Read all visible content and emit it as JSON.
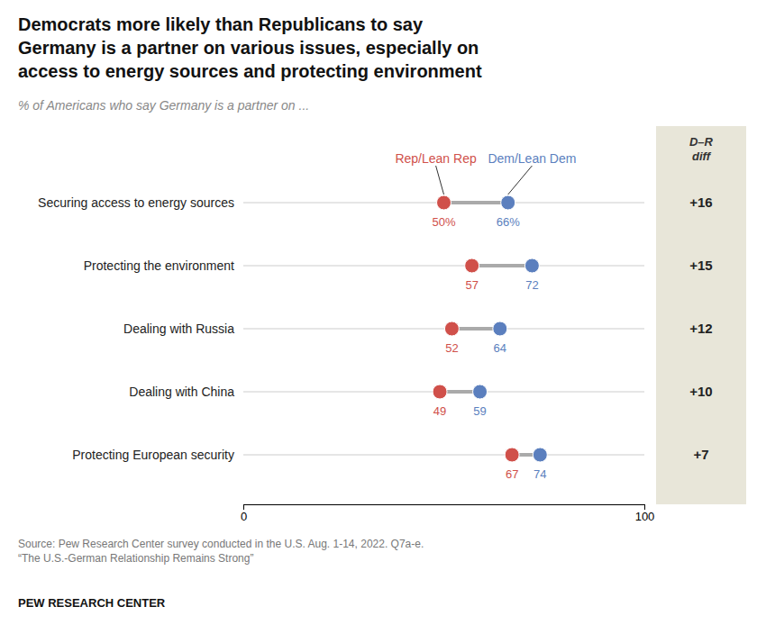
{
  "chart_data": {
    "type": "dumbbell",
    "orientation": "horizontal",
    "title": "Democrats more likely than Republicans to say\nGermany is a partner on various issues, especially on\naccess to energy sources and protecting environment",
    "subtitle": "% of Americans who say Germany is a partner on ...",
    "categories": [
      "Securing access to energy sources",
      "Protecting the environment",
      "Dealing with Russia",
      "Dealing with China",
      "Protecting European security"
    ],
    "series": [
      {
        "name": "Rep/Lean Rep",
        "color": "#d0504a",
        "values": [
          50,
          57,
          52,
          49,
          67
        ],
        "value_labels": [
          "50%",
          "57",
          "52",
          "49",
          "67"
        ]
      },
      {
        "name": "Dem/Lean Dem",
        "color": "#5b7fbe",
        "values": [
          66,
          72,
          64,
          59,
          74
        ],
        "value_labels": [
          "66%",
          "72",
          "64",
          "59",
          "74"
        ]
      }
    ],
    "diff": {
      "title": "D–R\ndiff",
      "values": [
        16,
        15,
        12,
        10,
        7
      ],
      "value_labels": [
        "+16",
        "+15",
        "+12",
        "+10",
        "+7"
      ]
    },
    "xlim": [
      0,
      100
    ],
    "xticks": [
      0,
      100
    ],
    "data_labels": true,
    "grid": false,
    "source": "Source: Pew Research Center survey conducted in the U.S. Aug. 1-14, 2022. Q7a-e.\n“The U.S.-German Relationship Remains Strong”",
    "credit": "PEW RESEARCH CENTER"
  }
}
